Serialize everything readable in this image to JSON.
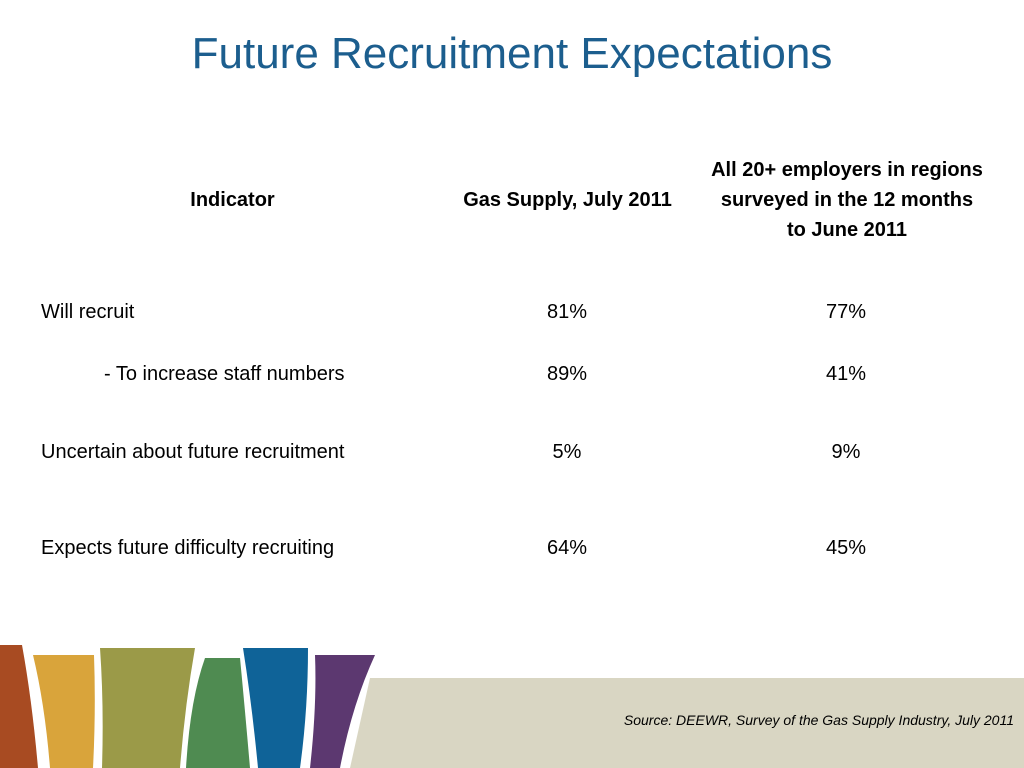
{
  "header": {
    "title": "Future Recruitment Expectations"
  },
  "table": {
    "columns": [
      "Indicator",
      "Gas Supply, July 2011",
      "All 20+ employers in regions surveyed in the 12 months to June 2011"
    ],
    "rows": [
      [
        "Will recruit",
        "81%",
        "77%"
      ],
      [
        "- To increase staff numbers",
        "89%",
        "41%"
      ],
      [
        "Uncertain about future recruitment",
        "5%",
        "9%"
      ],
      [
        "Expects future difficulty recruiting",
        "64%",
        "45%"
      ]
    ]
  },
  "footer": {
    "source": "Source: DEEWR, Survey of the Gas Supply Industry, July 2011"
  }
}
